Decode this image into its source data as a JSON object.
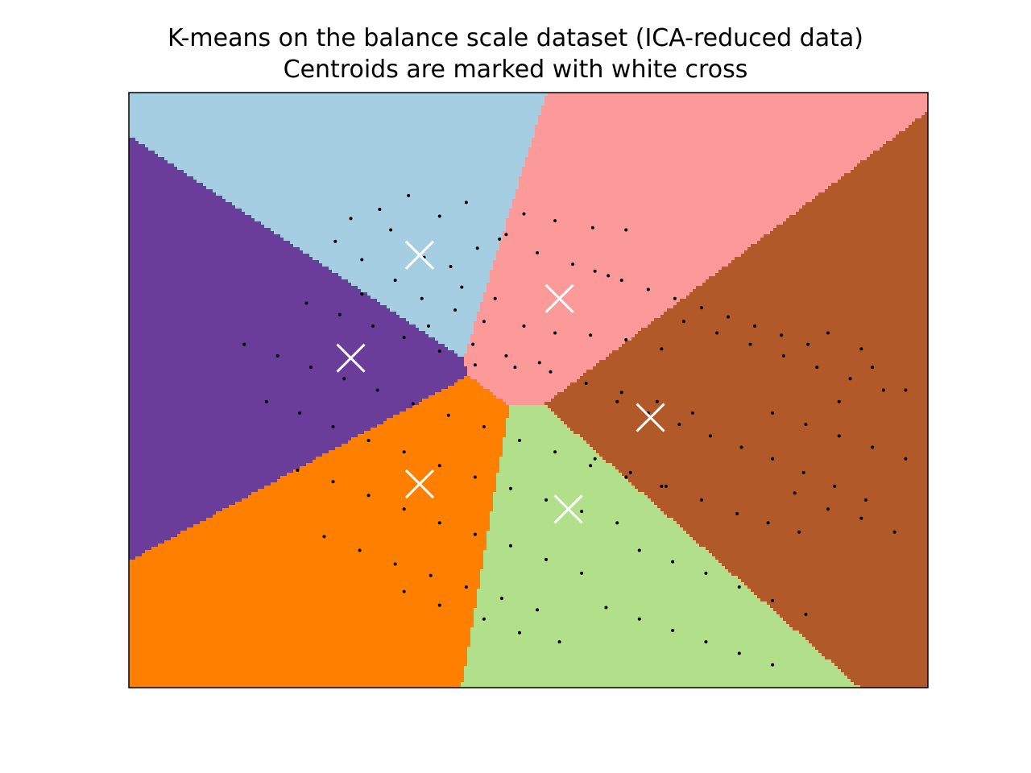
{
  "chart_data": {
    "type": "scatter",
    "title": "K-means on the balance scale dataset (ICA-reduced data)",
    "subtitle": "Centroids are marked with white cross",
    "xlabel": "",
    "ylabel": "",
    "xlim": [
      -1.6,
      2.0
    ],
    "ylim": [
      -1.3,
      1.3
    ],
    "xticks": [],
    "yticks": [],
    "grid": false,
    "legend": "none",
    "region_colors": [
      "#a6cee3",
      "#fb9a99",
      "#b15928",
      "#b2df8a",
      "#6a3d9a",
      "#ff7f00"
    ],
    "point_color": "#000000",
    "centroid_color": "#ffffff",
    "centroids": [
      {
        "x": -0.29,
        "y": 0.59
      },
      {
        "x": 0.34,
        "y": 0.4
      },
      {
        "x": 0.75,
        "y": -0.12
      },
      {
        "x": 0.38,
        "y": -0.52
      },
      {
        "x": -0.6,
        "y": 0.14
      },
      {
        "x": -0.29,
        "y": -0.41
      }
    ],
    "points": [
      [
        -0.34,
        0.85
      ],
      [
        -0.47,
        0.79
      ],
      [
        -0.2,
        0.76
      ],
      [
        -0.08,
        0.82
      ],
      [
        0.07,
        0.66
      ],
      [
        0.18,
        0.77
      ],
      [
        0.32,
        0.74
      ],
      [
        0.49,
        0.71
      ],
      [
        0.64,
        0.7
      ],
      [
        -0.6,
        0.75
      ],
      [
        -0.67,
        0.65
      ],
      [
        -0.55,
        0.57
      ],
      [
        -0.42,
        0.7
      ],
      [
        -0.27,
        0.58
      ],
      [
        -0.15,
        0.54
      ],
      [
        -0.03,
        0.62
      ],
      [
        0.1,
        0.68
      ],
      [
        -0.55,
        0.42
      ],
      [
        -0.4,
        0.48
      ],
      [
        -0.28,
        0.4
      ],
      [
        -0.13,
        0.35
      ],
      [
        0.0,
        0.3
      ],
      [
        0.18,
        0.28
      ],
      [
        0.32,
        0.25
      ],
      [
        0.48,
        0.24
      ],
      [
        0.64,
        0.22
      ],
      [
        0.8,
        0.18
      ],
      [
        -0.8,
        0.38
      ],
      [
        -0.65,
        0.33
      ],
      [
        -0.5,
        0.28
      ],
      [
        -0.36,
        0.23
      ],
      [
        -0.2,
        0.17
      ],
      [
        -0.04,
        0.11
      ],
      [
        0.14,
        0.1
      ],
      [
        0.3,
        0.08
      ],
      [
        0.46,
        0.03
      ],
      [
        0.62,
        -0.01
      ],
      [
        0.78,
        -0.05
      ],
      [
        0.94,
        -0.1
      ],
      [
        -1.08,
        0.2
      ],
      [
        -0.93,
        0.15
      ],
      [
        -0.78,
        0.1
      ],
      [
        -0.63,
        0.05
      ],
      [
        -0.48,
        0.0
      ],
      [
        -0.32,
        -0.06
      ],
      [
        -0.16,
        -0.11
      ],
      [
        0.0,
        -0.16
      ],
      [
        0.16,
        -0.22
      ],
      [
        0.32,
        -0.27
      ],
      [
        0.48,
        -0.33
      ],
      [
        0.64,
        -0.38
      ],
      [
        0.8,
        -0.42
      ],
      [
        -0.98,
        -0.05
      ],
      [
        -0.83,
        -0.1
      ],
      [
        -0.68,
        -0.16
      ],
      [
        -0.52,
        -0.22
      ],
      [
        -0.36,
        -0.27
      ],
      [
        -0.2,
        -0.33
      ],
      [
        -0.04,
        -0.38
      ],
      [
        0.12,
        -0.43
      ],
      [
        0.28,
        -0.48
      ],
      [
        0.44,
        -0.53
      ],
      [
        0.6,
        -0.58
      ],
      [
        -0.84,
        -0.35
      ],
      [
        -0.68,
        -0.4
      ],
      [
        -0.52,
        -0.46
      ],
      [
        -0.36,
        -0.52
      ],
      [
        -0.2,
        -0.58
      ],
      [
        -0.04,
        -0.63
      ],
      [
        0.12,
        -0.68
      ],
      [
        0.28,
        -0.74
      ],
      [
        0.44,
        -0.8
      ],
      [
        -0.72,
        -0.64
      ],
      [
        -0.56,
        -0.7
      ],
      [
        -0.4,
        -0.76
      ],
      [
        -0.24,
        -0.81
      ],
      [
        -0.08,
        -0.86
      ],
      [
        0.08,
        -0.91
      ],
      [
        0.24,
        -0.96
      ],
      [
        -0.36,
        -0.88
      ],
      [
        -0.2,
        -0.94
      ],
      [
        0.0,
        -1.0
      ],
      [
        0.16,
        -1.06
      ],
      [
        0.34,
        -1.1
      ],
      [
        0.5,
        0.52
      ],
      [
        0.62,
        0.48
      ],
      [
        0.74,
        0.44
      ],
      [
        0.86,
        0.4
      ],
      [
        0.98,
        0.36
      ],
      [
        1.1,
        0.32
      ],
      [
        1.22,
        0.28
      ],
      [
        1.34,
        0.24
      ],
      [
        1.46,
        0.2
      ],
      [
        0.9,
        0.3
      ],
      [
        1.05,
        0.25
      ],
      [
        1.2,
        0.2
      ],
      [
        1.35,
        0.15
      ],
      [
        1.5,
        0.1
      ],
      [
        1.65,
        0.05
      ],
      [
        1.8,
        0.0
      ],
      [
        0.6,
        -0.05
      ],
      [
        0.74,
        -0.1
      ],
      [
        0.88,
        -0.15
      ],
      [
        1.02,
        -0.2
      ],
      [
        1.16,
        -0.25
      ],
      [
        1.3,
        -0.3
      ],
      [
        1.44,
        -0.36
      ],
      [
        1.58,
        -0.42
      ],
      [
        1.72,
        -0.48
      ],
      [
        0.5,
        -0.3
      ],
      [
        0.66,
        -0.36
      ],
      [
        0.82,
        -0.42
      ],
      [
        0.98,
        -0.48
      ],
      [
        1.14,
        -0.54
      ],
      [
        1.28,
        -0.58
      ],
      [
        1.42,
        -0.62
      ],
      [
        0.7,
        -0.7
      ],
      [
        0.85,
        -0.75
      ],
      [
        1.0,
        -0.8
      ],
      [
        1.15,
        -0.86
      ],
      [
        1.3,
        -0.92
      ],
      [
        1.45,
        -0.98
      ],
      [
        0.55,
        -0.95
      ],
      [
        0.7,
        -1.0
      ],
      [
        0.85,
        -1.05
      ],
      [
        1.0,
        -1.1
      ],
      [
        1.15,
        -1.15
      ],
      [
        1.3,
        -1.2
      ],
      [
        1.4,
        -0.45
      ],
      [
        1.55,
        -0.52
      ],
      [
        1.7,
        -0.56
      ],
      [
        1.85,
        -0.62
      ],
      [
        1.3,
        -0.1
      ],
      [
        1.45,
        -0.15
      ],
      [
        1.6,
        -0.2
      ],
      [
        1.75,
        -0.25
      ],
      [
        1.9,
        -0.3
      ],
      [
        0.24,
        0.6
      ],
      [
        0.4,
        0.55
      ],
      [
        0.56,
        0.5
      ],
      [
        -0.1,
        0.45
      ],
      [
        0.05,
        0.4
      ],
      [
        -0.25,
        0.28
      ],
      [
        -0.05,
        0.2
      ],
      [
        0.1,
        0.15
      ],
      [
        0.25,
        0.12
      ],
      [
        1.6,
        -0.05
      ],
      [
        1.75,
        0.1
      ],
      [
        1.9,
        0.0
      ],
      [
        1.55,
        0.25
      ],
      [
        1.7,
        0.18
      ]
    ]
  }
}
